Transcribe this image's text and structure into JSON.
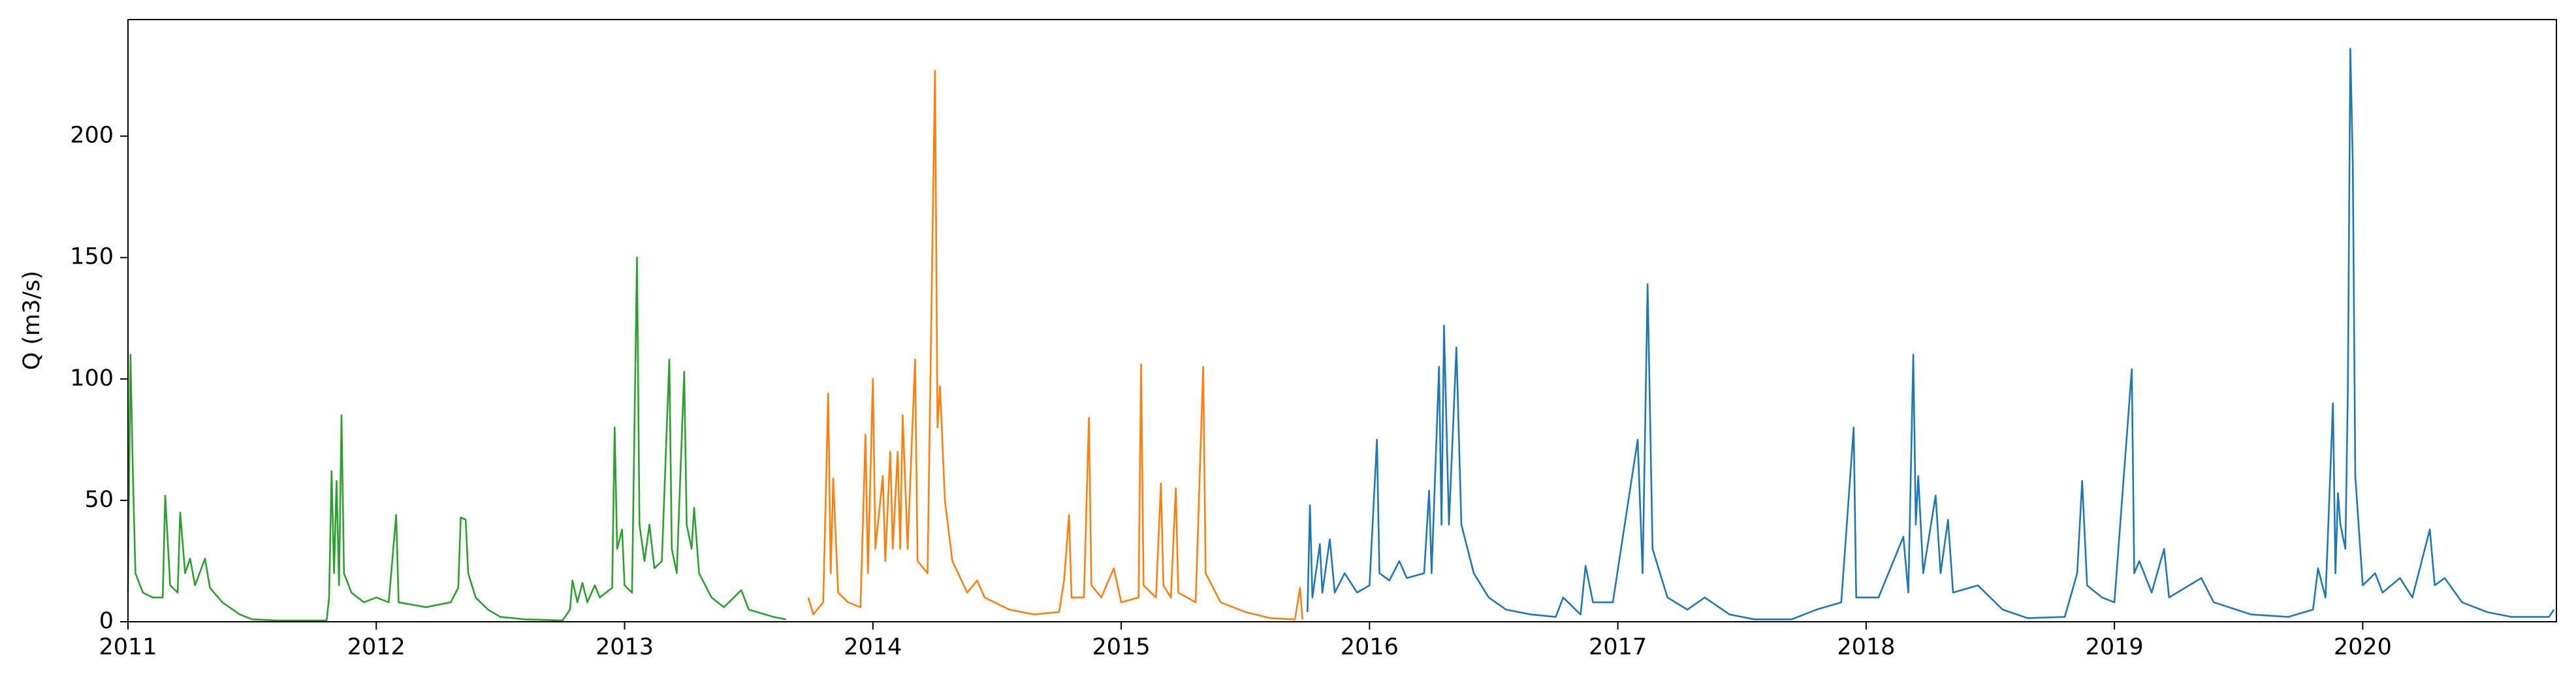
{
  "chart_data": {
    "type": "line",
    "ylabel": "Q (m3/s)",
    "xlim": [
      2011,
      2020.78
    ],
    "xticks": [
      2011,
      2012,
      2013,
      2014,
      2015,
      2016,
      2017,
      2018,
      2019,
      2020
    ],
    "ylim": [
      0,
      248
    ],
    "yticks": [
      0,
      50,
      100,
      150,
      200
    ],
    "series": [
      {
        "color": "#2ca02c",
        "x": [
          2011.0,
          2011.01,
          2011.02,
          2011.03,
          2011.06,
          2011.1,
          2011.14,
          2011.15,
          2011.17,
          2011.2,
          2011.21,
          2011.23,
          2011.25,
          2011.27,
          2011.31,
          2011.33,
          2011.38,
          2011.45,
          2011.5,
          2011.6,
          2011.8,
          2011.81,
          2011.82,
          2011.83,
          2011.84,
          2011.85,
          2011.86,
          2011.87,
          2011.9,
          2011.95,
          2012.0,
          2012.05,
          2012.08,
          2012.09,
          2012.2,
          2012.3,
          2012.33,
          2012.34,
          2012.36,
          2012.37,
          2012.4,
          2012.45,
          2012.5,
          2012.6,
          2012.75,
          2012.78,
          2012.79,
          2012.81,
          2012.83,
          2012.85,
          2012.88,
          2012.9,
          2012.95,
          2012.96,
          2012.97,
          2012.99,
          2013.0,
          2013.03,
          2013.05,
          2013.06,
          2013.08,
          2013.1,
          2013.12,
          2013.15,
          2013.18,
          2013.19,
          2013.21,
          2013.24,
          2013.25,
          2013.27,
          2013.28,
          2013.3,
          2013.35,
          2013.4,
          2013.47,
          2013.5,
          2013.6,
          2013.65
        ],
        "values": [
          12,
          110,
          60,
          20,
          12,
          10,
          10,
          52,
          15,
          12,
          45,
          20,
          26,
          15,
          26,
          14,
          8,
          3,
          1,
          0.5,
          0.5,
          10,
          62,
          20,
          58,
          15,
          85,
          20,
          12,
          8,
          10,
          8,
          44,
          8,
          6,
          8,
          14,
          43,
          42,
          20,
          10,
          5,
          2,
          1,
          0.5,
          5,
          17,
          8,
          16,
          8,
          15,
          10,
          14,
          80,
          30,
          38,
          15,
          12,
          150,
          40,
          25,
          40,
          22,
          25,
          108,
          30,
          20,
          103,
          40,
          30,
          47,
          20,
          10,
          6,
          13,
          5,
          2,
          1
        ]
      },
      {
        "color": "#ff7f0e",
        "x": [
          2013.74,
          2013.76,
          2013.8,
          2013.81,
          2013.82,
          2013.83,
          2013.84,
          2013.86,
          2013.9,
          2013.95,
          2013.97,
          2013.98,
          2014.0,
          2014.01,
          2014.04,
          2014.05,
          2014.07,
          2014.08,
          2014.1,
          2014.11,
          2014.12,
          2014.14,
          2014.17,
          2014.18,
          2014.22,
          2014.25,
          2014.26,
          2014.27,
          2014.29,
          2014.32,
          2014.38,
          2014.42,
          2014.45,
          2014.55,
          2014.65,
          2014.75,
          2014.77,
          2014.79,
          2014.8,
          2014.85,
          2014.87,
          2014.88,
          2014.92,
          2014.97,
          2015.0,
          2015.07,
          2015.08,
          2015.09,
          2015.14,
          2015.16,
          2015.17,
          2015.2,
          2015.22,
          2015.23,
          2015.3,
          2015.33,
          2015.34,
          2015.4,
          2015.5,
          2015.6,
          2015.7,
          2015.72,
          2015.73
        ],
        "values": [
          10,
          3,
          8,
          50,
          94,
          20,
          59,
          12,
          8,
          6,
          77,
          20,
          100,
          30,
          60,
          25,
          70,
          30,
          70,
          30,
          85,
          30,
          108,
          25,
          20,
          227,
          80,
          97,
          50,
          25,
          12,
          17,
          10,
          5,
          3,
          4,
          17,
          44,
          10,
          10,
          84,
          15,
          10,
          22,
          8,
          10,
          106,
          15,
          10,
          57,
          15,
          10,
          55,
          12,
          8,
          105,
          20,
          8,
          4,
          1.5,
          1,
          14,
          1
        ]
      },
      {
        "color": "#1f77b4",
        "x": [
          2015.75,
          2015.76,
          2015.77,
          2015.8,
          2015.81,
          2015.84,
          2015.86,
          2015.9,
          2015.95,
          2016.0,
          2016.03,
          2016.04,
          2016.08,
          2016.12,
          2016.15,
          2016.22,
          2016.24,
          2016.25,
          2016.28,
          2016.29,
          2016.3,
          2016.32,
          2016.35,
          2016.37,
          2016.42,
          2016.48,
          2016.55,
          2016.65,
          2016.75,
          2016.78,
          2016.85,
          2016.87,
          2016.9,
          2016.98,
          2017.08,
          2017.1,
          2017.12,
          2017.14,
          2017.2,
          2017.28,
          2017.35,
          2017.45,
          2017.55,
          2017.7,
          2017.8,
          2017.9,
          2017.95,
          2017.96,
          2018.05,
          2018.15,
          2018.17,
          2018.19,
          2018.2,
          2018.21,
          2018.23,
          2018.28,
          2018.3,
          2018.33,
          2018.35,
          2018.45,
          2018.55,
          2018.65,
          2018.8,
          2018.85,
          2018.87,
          2018.89,
          2018.95,
          2019.0,
          2019.07,
          2019.08,
          2019.1,
          2019.15,
          2019.2,
          2019.22,
          2019.35,
          2019.4,
          2019.55,
          2019.7,
          2019.8,
          2019.82,
          2019.85,
          2019.88,
          2019.89,
          2019.9,
          2019.91,
          2019.93,
          2019.94,
          2019.95,
          2019.96,
          2019.97,
          2020.0,
          2020.05,
          2020.08,
          2020.15,
          2020.2,
          2020.27,
          2020.29,
          2020.33,
          2020.4,
          2020.5,
          2020.6,
          2020.75,
          2020.77
        ],
        "values": [
          4,
          48,
          10,
          32,
          12,
          34,
          12,
          20,
          12,
          15,
          75,
          20,
          17,
          25,
          18,
          20,
          54,
          20,
          105,
          40,
          122,
          40,
          113,
          40,
          20,
          10,
          5,
          3,
          2,
          10,
          3,
          23,
          8,
          8,
          75,
          20,
          139,
          30,
          10,
          5,
          10,
          3,
          1,
          1,
          5,
          8,
          80,
          10,
          10,
          35,
          12,
          110,
          40,
          60,
          20,
          52,
          20,
          42,
          12,
          15,
          5,
          1.5,
          2,
          20,
          58,
          15,
          10,
          8,
          104,
          20,
          25,
          12,
          30,
          10,
          18,
          8,
          3,
          2,
          5,
          22,
          10,
          90,
          20,
          53,
          40,
          30,
          95,
          236,
          188,
          60,
          15,
          20,
          12,
          18,
          10,
          38,
          15,
          18,
          8,
          4,
          2,
          2,
          5
        ]
      }
    ]
  }
}
